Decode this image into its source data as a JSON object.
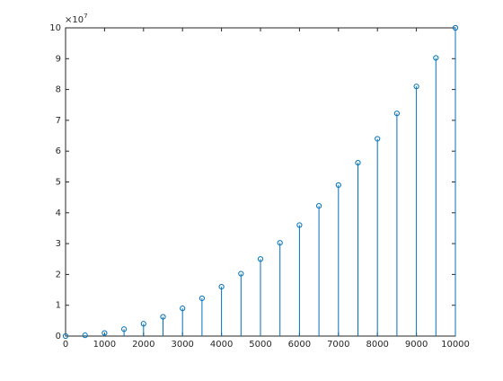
{
  "chart_data": {
    "type": "stem",
    "x": [
      0,
      500,
      1000,
      1500,
      2000,
      2500,
      3000,
      3500,
      4000,
      4500,
      5000,
      5500,
      6000,
      6500,
      7000,
      7500,
      8000,
      8500,
      9000,
      9500,
      10000
    ],
    "series": [
      {
        "color": "#0072bd",
        "values": [
          0,
          0.025,
          0.1,
          0.225,
          0.4,
          0.625,
          0.9,
          1.225,
          1.6,
          2.025,
          2.5,
          3.025,
          3.6,
          4.225,
          4.9,
          5.625,
          6.4,
          7.225,
          8.1,
          9.025,
          10
        ]
      }
    ],
    "xlim": [
      0,
      10000
    ],
    "xticks": [
      0,
      1000,
      2000,
      3000,
      4000,
      5000,
      6000,
      7000,
      8000,
      9000,
      10000
    ],
    "ylim": [
      0,
      10
    ],
    "yticks": [
      0,
      1,
      2,
      3,
      4,
      5,
      6,
      7,
      8,
      9,
      10
    ],
    "y_multiplier": {
      "base": "×10",
      "exponent": "7"
    }
  }
}
